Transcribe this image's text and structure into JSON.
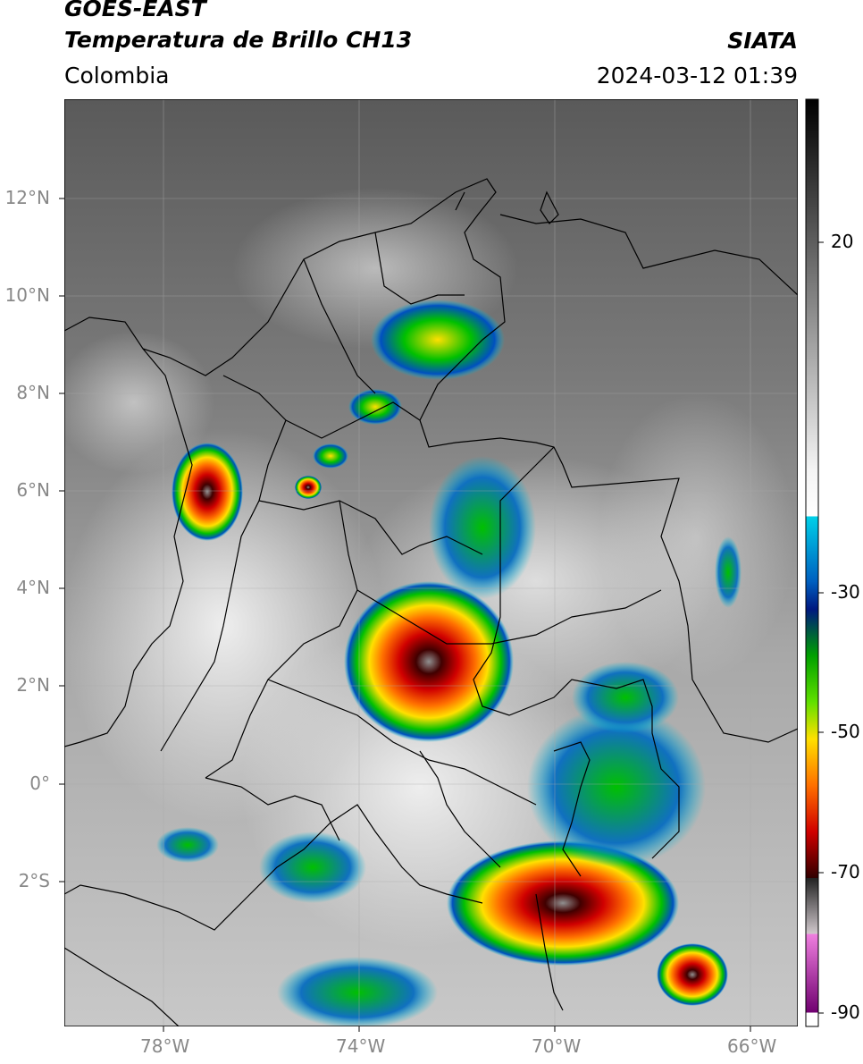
{
  "title": {
    "satellite": "GOES-EAST",
    "product": "Temperatura de Brillo CH13",
    "region": "Colombia",
    "org": "SIATA",
    "datetime": "2024-03-12 01:39"
  },
  "map": {
    "lat_ticks": [
      "12°N",
      "10°N",
      "8°N",
      "6°N",
      "4°N",
      "2°N",
      "0°",
      "2°S"
    ],
    "lon_ticks": [
      "78°W",
      "74°W",
      "70°W",
      "66°W"
    ]
  },
  "colorbar": {
    "tick_labels": [
      "20",
      "-30",
      "-50",
      "-70",
      "-90"
    ],
    "colors": [
      "#000000",
      "#ffffff",
      "#00bcd4",
      "#00308f",
      "#00c000",
      "#ffe000",
      "#ff7000",
      "#d00000",
      "#400000",
      "#c0b0b8",
      "#e070d0",
      "#800080"
    ]
  }
}
